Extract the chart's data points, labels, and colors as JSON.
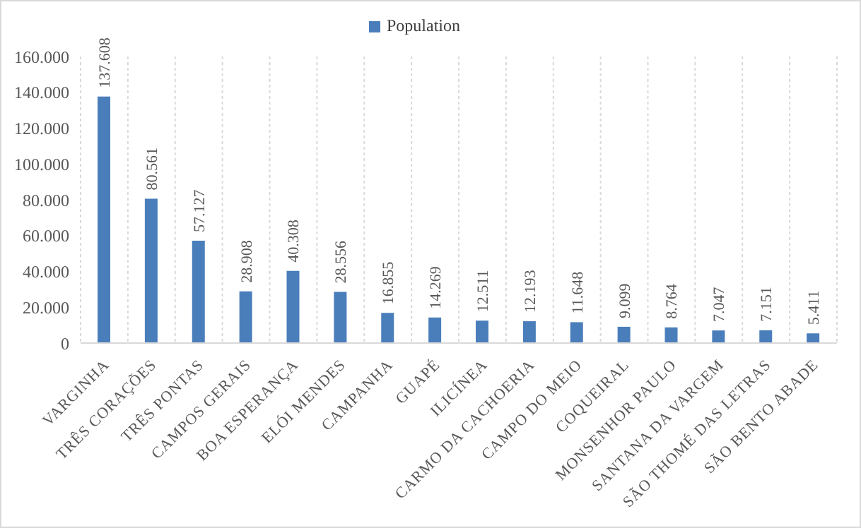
{
  "chart_data": {
    "type": "bar",
    "categories": [
      "VARGINHA",
      "TRÊS CORAÇÕES",
      "TRÊS PONTAS",
      "CAMPOS GERAIS",
      "BOA ESPERANÇA",
      "ELÓI MENDES",
      "CAMPANHA",
      "GUAPÉ",
      "ILICÍNEA",
      "CARMO DA CACHOERIA",
      "CAMPO DO MEIO",
      "COQUEIRAL",
      "MONSENHOR PAULO",
      "SANTANA DA VARGEM",
      "SÃO THOMÉ DAS LETRAS",
      "SÃO BENTO ABADE"
    ],
    "series": [
      {
        "name": "Population",
        "color": "#4a7ebb",
        "values": [
          137608,
          80561,
          57127,
          28908,
          40308,
          28556,
          16855,
          14269,
          12511,
          12193,
          11648,
          9099,
          8764,
          7047,
          7151,
          5411
        ],
        "value_labels": [
          "137.608",
          "80.561",
          "57.127",
          "28.908",
          "40.308",
          "28.556",
          "16.855",
          "14.269",
          "12.511",
          "12.193",
          "11.648",
          "9.099",
          "8.764",
          "7.047",
          "7.151",
          "5.411"
        ]
      }
    ],
    "ylim": [
      0,
      160000
    ],
    "yticks": [
      {
        "value": 0,
        "label": "0"
      },
      {
        "value": 20000,
        "label": "20.000"
      },
      {
        "value": 40000,
        "label": "40.000"
      },
      {
        "value": 60000,
        "label": "60.000"
      },
      {
        "value": 80000,
        "label": "80.000"
      },
      {
        "value": 100000,
        "label": "100.000"
      },
      {
        "value": 120000,
        "label": "120.000"
      },
      {
        "value": 140000,
        "label": "140.000"
      },
      {
        "value": 160000,
        "label": "160.000"
      }
    ],
    "grid": "x",
    "legend": "top"
  }
}
